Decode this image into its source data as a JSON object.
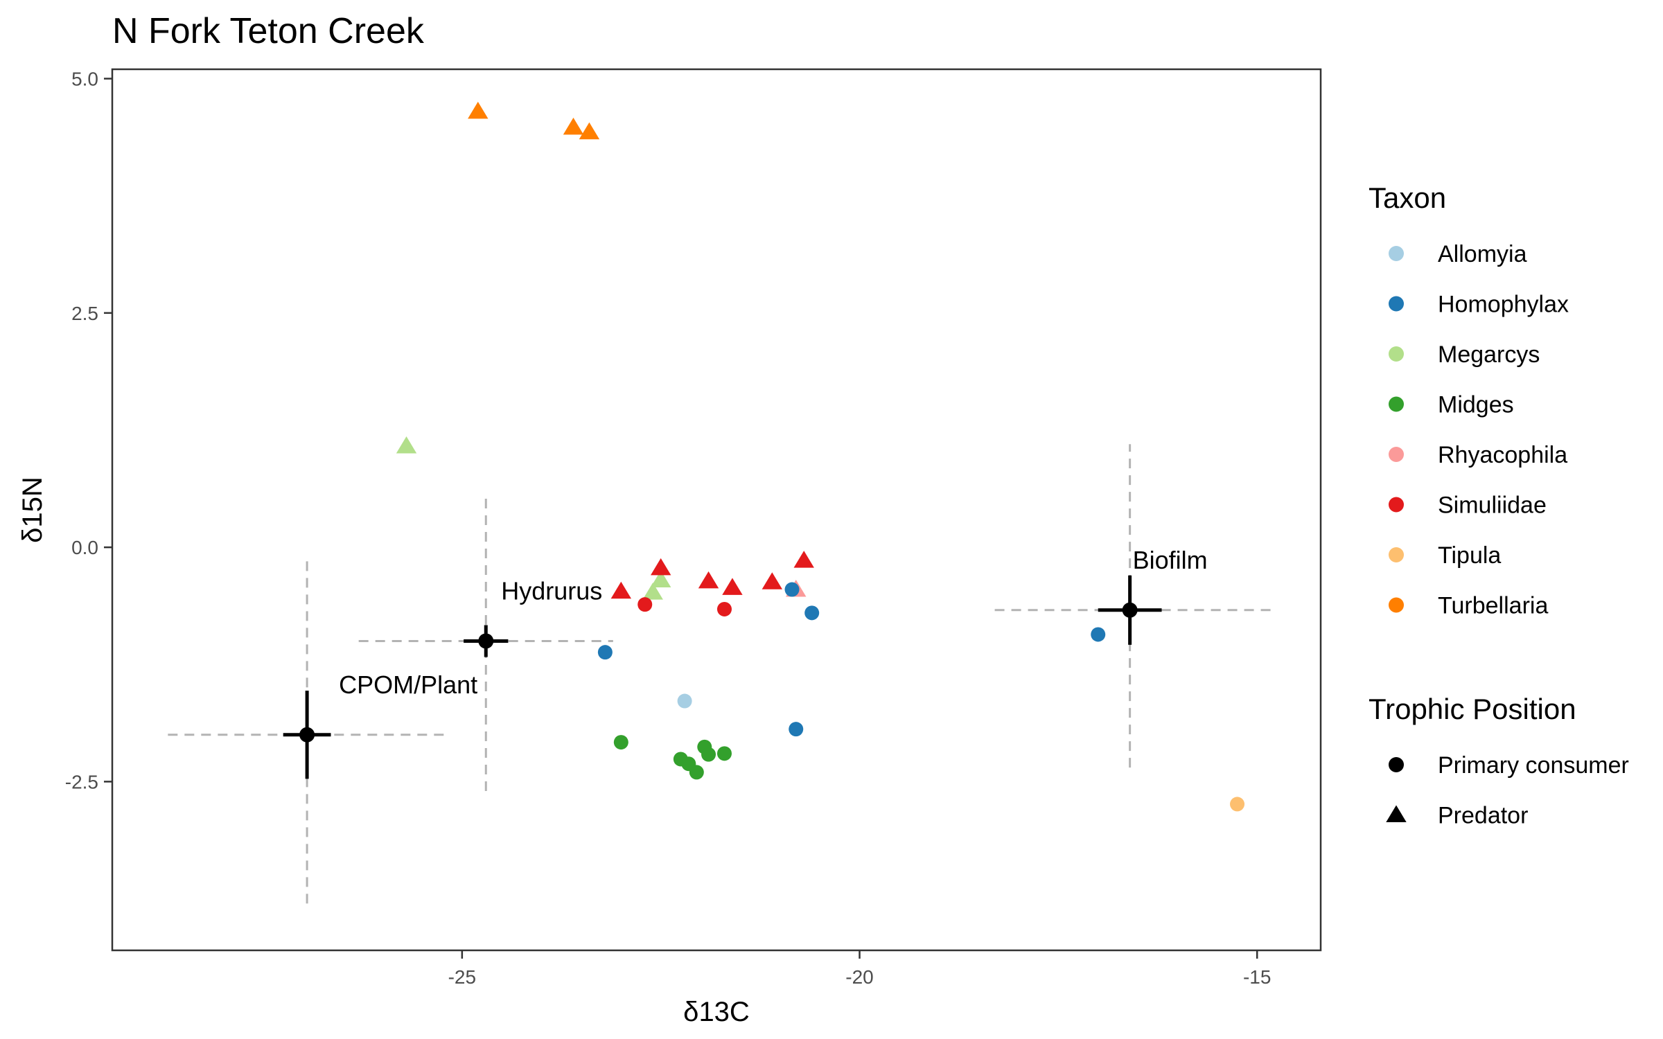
{
  "chart_data": {
    "type": "scatter",
    "title": "N Fork Teton Creek",
    "xlabel": "δ13C",
    "ylabel": "δ15N",
    "xlim": [
      -29.4,
      -14.2
    ],
    "ylim": [
      -4.3,
      5.1
    ],
    "xticks": [
      -25,
      -20,
      -15
    ],
    "xtick_labels": [
      "-25",
      "-20",
      "-15"
    ],
    "yticks": [
      -2.5,
      0.0,
      2.5,
      5.0
    ],
    "ytick_labels": [
      "-2.5",
      "0.0",
      "2.5",
      "5.0"
    ],
    "grid": false,
    "legend_placement": "right",
    "legend_taxon_title": "Taxon",
    "legend_trophic_title": "Trophic Position",
    "taxa": [
      {
        "name": "Allomyia",
        "color": "#a6cee3"
      },
      {
        "name": "Homophylax",
        "color": "#1f78b4"
      },
      {
        "name": "Megarcys",
        "color": "#b2df8a"
      },
      {
        "name": "Midges",
        "color": "#33a02c"
      },
      {
        "name": "Rhyacophila",
        "color": "#fb9a99"
      },
      {
        "name": "Simuliidae",
        "color": "#e31a1c"
      },
      {
        "name": "Tipula",
        "color": "#fdbf6f"
      },
      {
        "name": "Turbellaria",
        "color": "#ff7f00"
      }
    ],
    "trophic_positions": [
      {
        "name": "Primary consumer",
        "shape": "circle"
      },
      {
        "name": "Predator",
        "shape": "triangle"
      }
    ],
    "points": [
      {
        "taxon": "Turbellaria",
        "trophic": "Predator",
        "x": -24.8,
        "y": 4.65
      },
      {
        "taxon": "Turbellaria",
        "trophic": "Predator",
        "x": -23.6,
        "y": 4.48
      },
      {
        "taxon": "Turbellaria",
        "trophic": "Predator",
        "x": -23.4,
        "y": 4.43
      },
      {
        "taxon": "Megarcys",
        "trophic": "Predator",
        "x": -25.7,
        "y": 1.08
      },
      {
        "taxon": "Megarcys",
        "trophic": "Predator",
        "x": -22.6,
        "y": -0.48
      },
      {
        "taxon": "Megarcys",
        "trophic": "Predator",
        "x": -22.5,
        "y": -0.35
      },
      {
        "taxon": "Simuliidae",
        "trophic": "Predator",
        "x": -23.0,
        "y": -0.47
      },
      {
        "taxon": "Simuliidae",
        "trophic": "Predator",
        "x": -22.5,
        "y": -0.22
      },
      {
        "taxon": "Simuliidae",
        "trophic": "Predator",
        "x": -21.9,
        "y": -0.36
      },
      {
        "taxon": "Simuliidae",
        "trophic": "Predator",
        "x": -21.6,
        "y": -0.43
      },
      {
        "taxon": "Simuliidae",
        "trophic": "Predator",
        "x": -21.1,
        "y": -0.37
      },
      {
        "taxon": "Simuliidae",
        "trophic": "Predator",
        "x": -20.7,
        "y": -0.14
      },
      {
        "taxon": "Rhyacophila",
        "trophic": "Predator",
        "x": -20.8,
        "y": -0.45
      },
      {
        "taxon": "Simuliidae",
        "trophic": "Primary consumer",
        "x": -22.7,
        "y": -0.61
      },
      {
        "taxon": "Simuliidae",
        "trophic": "Primary consumer",
        "x": -21.7,
        "y": -0.66
      },
      {
        "taxon": "Homophylax",
        "trophic": "Primary consumer",
        "x": -20.85,
        "y": -0.45
      },
      {
        "taxon": "Homophylax",
        "trophic": "Primary consumer",
        "x": -20.6,
        "y": -0.7
      },
      {
        "taxon": "Homophylax",
        "trophic": "Primary consumer",
        "x": -23.2,
        "y": -1.12
      },
      {
        "taxon": "Homophylax",
        "trophic": "Primary consumer",
        "x": -20.8,
        "y": -1.94
      },
      {
        "taxon": "Homophylax",
        "trophic": "Primary consumer",
        "x": -17.0,
        "y": -0.93
      },
      {
        "taxon": "Allomyia",
        "trophic": "Primary consumer",
        "x": -22.2,
        "y": -1.64
      },
      {
        "taxon": "Midges",
        "trophic": "Primary consumer",
        "x": -23.0,
        "y": -2.08
      },
      {
        "taxon": "Midges",
        "trophic": "Primary consumer",
        "x": -22.25,
        "y": -2.26
      },
      {
        "taxon": "Midges",
        "trophic": "Primary consumer",
        "x": -22.15,
        "y": -2.31
      },
      {
        "taxon": "Midges",
        "trophic": "Primary consumer",
        "x": -22.05,
        "y": -2.4
      },
      {
        "taxon": "Midges",
        "trophic": "Primary consumer",
        "x": -21.95,
        "y": -2.13
      },
      {
        "taxon": "Midges",
        "trophic": "Primary consumer",
        "x": -21.9,
        "y": -2.21
      },
      {
        "taxon": "Midges",
        "trophic": "Primary consumer",
        "x": -21.7,
        "y": -2.2
      },
      {
        "taxon": "Tipula",
        "trophic": "Primary consumer",
        "x": -15.25,
        "y": -2.74
      }
    ],
    "sources": [
      {
        "label": "CPOM/Plant",
        "x": -26.95,
        "y": -2.0,
        "xerr": 0.3,
        "yerr": 0.47,
        "xrange": [
          -28.7,
          -25.2
        ],
        "yrange": [
          -3.8,
          -0.1
        ]
      },
      {
        "label": "Hydrurus",
        "x": -24.7,
        "y": -1.0,
        "xerr": 0.28,
        "yerr": 0.17,
        "xrange": [
          -26.3,
          -23.1
        ],
        "yrange": [
          -2.6,
          0.57
        ]
      },
      {
        "label": "Biofilm",
        "x": -16.6,
        "y": -0.67,
        "xerr": 0.4,
        "yerr": 0.37,
        "xrange": [
          -18.3,
          -14.8
        ],
        "yrange": [
          -2.35,
          1.1
        ]
      }
    ]
  }
}
